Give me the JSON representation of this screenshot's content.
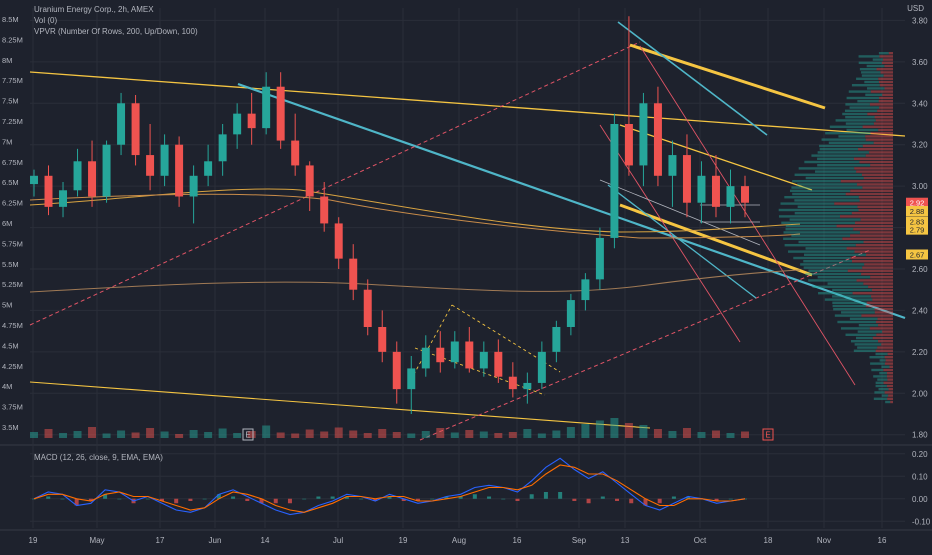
{
  "header": {
    "title": "Uranium Energy Corp., 2h, AMEX",
    "vol_label": "Vol (0)",
    "vpvr_label": "VPVR (Number Of Rows, 200, Up/Down, 100)",
    "currency": "USD"
  },
  "colors": {
    "background": "#1e222d",
    "grid": "#2a2e39",
    "text": "#b2b5be",
    "up_candle": "#26a69a",
    "down_candle": "#ef5350",
    "trend_yellow": "#f5c542",
    "trend_blue": "#4fb6c8",
    "channel_red": "#e05466",
    "macd_line": "#2962ff",
    "signal_line": "#ff6d00"
  },
  "chart_data": {
    "type": "line",
    "title": "Uranium Energy Corp., 2h, AMEX",
    "price_axis": {
      "ticks": [
        "3.80",
        "3.60",
        "3.40",
        "3.20",
        "3.00",
        "2.80",
        "2.60",
        "2.40",
        "2.20",
        "2.00",
        "1.80"
      ],
      "tick_values": [
        3.8,
        3.6,
        3.4,
        3.2,
        3.0,
        2.8,
        2.6,
        2.4,
        2.2,
        2.0,
        1.8
      ],
      "range": [
        1.76,
        3.86
      ],
      "price_labels": [
        "2.92",
        "2.88",
        "2.83",
        "2.79",
        "2.67"
      ]
    },
    "volume_axis": {
      "ticks": [
        "8.5M",
        "8.25M",
        "8M",
        "7.75M",
        "7.5M",
        "7.25M",
        "7M",
        "6.75M",
        "6.5M",
        "6.25M",
        "6M",
        "5.75M",
        "5.5M",
        "5.25M",
        "5M",
        "4.75M",
        "4.5M",
        "4.25M",
        "4M",
        "3.75M",
        "3.5M"
      ]
    },
    "x_axis": {
      "ticks": [
        "19",
        "May",
        "17",
        "Jun",
        "14",
        "Jul",
        "19",
        "Aug",
        "16",
        "Sep",
        "13",
        "Oct",
        "18",
        "Nov",
        "16"
      ]
    },
    "macd": {
      "label": "MACD (12, 26, close, 9, EMA, EMA)",
      "ticks": [
        "0.20",
        "0.10",
        "0.00",
        "-0.10"
      ],
      "tick_values": [
        0.2,
        0.1,
        0.0,
        -0.1
      ],
      "range": [
        -0.13,
        0.23
      ],
      "macd_series": [
        0.0,
        0.03,
        0.02,
        -0.03,
        -0.02,
        0.04,
        0.03,
        -0.01,
        0.01,
        -0.02,
        -0.05,
        -0.06,
        -0.04,
        0.02,
        0.04,
        0.01,
        -0.02,
        -0.05,
        -0.07,
        -0.06,
        -0.03,
        -0.01,
        0.02,
        0.01,
        -0.01,
        0.02,
        0.0,
        -0.02,
        -0.01,
        0.01,
        0.02,
        0.05,
        0.06,
        0.05,
        0.03,
        0.08,
        0.14,
        0.18,
        0.13,
        0.09,
        0.12,
        0.07,
        0.02,
        -0.03,
        -0.05,
        -0.02,
        0.01,
        0.0,
        -0.02,
        -0.01,
        0.0
      ],
      "signal_series": [
        0.0,
        0.02,
        0.02,
        0.0,
        -0.01,
        0.02,
        0.03,
        0.01,
        0.01,
        -0.01,
        -0.03,
        -0.05,
        -0.04,
        0.0,
        0.03,
        0.02,
        0.0,
        -0.03,
        -0.05,
        -0.06,
        -0.04,
        -0.02,
        0.01,
        0.01,
        0.0,
        0.01,
        0.01,
        -0.01,
        -0.01,
        0.0,
        0.01,
        0.03,
        0.05,
        0.05,
        0.04,
        0.06,
        0.11,
        0.15,
        0.14,
        0.11,
        0.11,
        0.08,
        0.04,
        0.0,
        -0.03,
        -0.03,
        0.0,
        0.0,
        -0.01,
        -0.01,
        0.0
      ]
    },
    "markers": [
      "E",
      "E"
    ],
    "grid": true
  },
  "candles": [
    [
      3.01,
      3.08,
      2.95,
      3.05
    ],
    [
      3.05,
      3.1,
      2.86,
      2.9
    ],
    [
      2.9,
      3.02,
      2.85,
      2.98
    ],
    [
      2.98,
      3.18,
      2.95,
      3.12
    ],
    [
      3.12,
      3.22,
      2.9,
      2.95
    ],
    [
      2.95,
      3.22,
      2.92,
      3.2
    ],
    [
      3.2,
      3.45,
      3.15,
      3.4
    ],
    [
      3.4,
      3.44,
      3.1,
      3.15
    ],
    [
      3.15,
      3.3,
      2.98,
      3.05
    ],
    [
      3.05,
      3.25,
      3.0,
      3.2
    ],
    [
      3.2,
      3.24,
      2.9,
      2.95
    ],
    [
      2.95,
      3.1,
      2.82,
      3.05
    ],
    [
      3.05,
      3.2,
      3.0,
      3.12
    ],
    [
      3.12,
      3.3,
      3.05,
      3.25
    ],
    [
      3.25,
      3.4,
      3.18,
      3.35
    ],
    [
      3.35,
      3.45,
      3.2,
      3.28
    ],
    [
      3.28,
      3.55,
      3.25,
      3.48
    ],
    [
      3.48,
      3.55,
      3.18,
      3.22
    ],
    [
      3.22,
      3.35,
      3.05,
      3.1
    ],
    [
      3.1,
      3.12,
      2.88,
      2.95
    ],
    [
      2.95,
      3.02,
      2.78,
      2.82
    ],
    [
      2.82,
      2.85,
      2.6,
      2.65
    ],
    [
      2.65,
      2.72,
      2.45,
      2.5
    ],
    [
      2.5,
      2.55,
      2.28,
      2.32
    ],
    [
      2.32,
      2.4,
      2.15,
      2.2
    ],
    [
      2.2,
      2.25,
      1.95,
      2.02
    ],
    [
      2.02,
      2.18,
      1.9,
      2.12
    ],
    [
      2.12,
      2.28,
      2.08,
      2.22
    ],
    [
      2.22,
      2.3,
      2.1,
      2.15
    ],
    [
      2.15,
      2.3,
      2.12,
      2.25
    ],
    [
      2.25,
      2.32,
      2.1,
      2.12
    ],
    [
      2.12,
      2.25,
      2.08,
      2.2
    ],
    [
      2.2,
      2.26,
      2.05,
      2.08
    ],
    [
      2.08,
      2.15,
      1.98,
      2.02
    ],
    [
      2.02,
      2.1,
      1.95,
      2.05
    ],
    [
      2.05,
      2.25,
      2.02,
      2.2
    ],
    [
      2.2,
      2.35,
      2.15,
      2.32
    ],
    [
      2.32,
      2.48,
      2.28,
      2.45
    ],
    [
      2.45,
      2.58,
      2.4,
      2.55
    ],
    [
      2.55,
      2.8,
      2.5,
      2.75
    ],
    [
      2.75,
      3.35,
      2.7,
      3.3
    ],
    [
      3.3,
      3.82,
      3.05,
      3.1
    ],
    [
      3.1,
      3.45,
      3.0,
      3.4
    ],
    [
      3.4,
      3.48,
      3.0,
      3.05
    ],
    [
      3.05,
      3.22,
      2.9,
      3.15
    ],
    [
      3.15,
      3.25,
      2.85,
      2.92
    ],
    [
      2.92,
      3.12,
      2.82,
      3.05
    ],
    [
      3.05,
      3.15,
      2.85,
      2.9
    ],
    [
      2.9,
      3.08,
      2.82,
      3.0
    ],
    [
      3.0,
      3.05,
      2.85,
      2.92
    ]
  ],
  "volume_bars": [
    12,
    18,
    10,
    14,
    22,
    9,
    15,
    11,
    20,
    13,
    8,
    16,
    12,
    19,
    10,
    14,
    25,
    11,
    9,
    17,
    13,
    21,
    15,
    10,
    18,
    12,
    9,
    14,
    20,
    11,
    16,
    13,
    10,
    12,
    18,
    9,
    15,
    22,
    28,
    35,
    40,
    30,
    26,
    18,
    14,
    20,
    12,
    15,
    10,
    13
  ]
}
